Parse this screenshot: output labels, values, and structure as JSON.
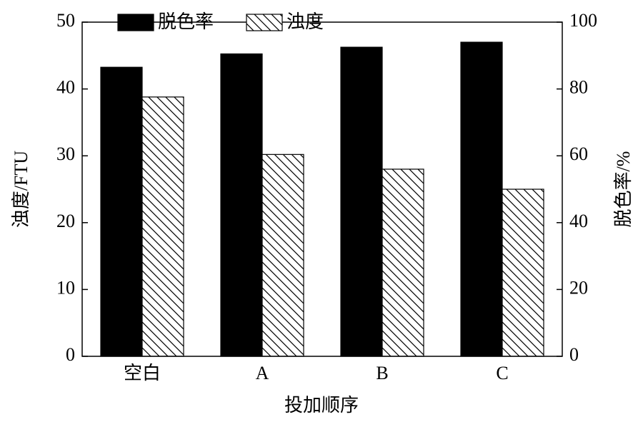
{
  "chart_data": {
    "type": "bar",
    "x_label": "投加顺序",
    "y_label": "浊度/FTU",
    "y2_label": "脱色率/%",
    "categories": [
      "空白",
      "A",
      "B",
      "C"
    ],
    "series": [
      {
        "name": "脱色率",
        "color": "#000000",
        "axis": "y2",
        "values": [
          86.5,
          90.5,
          92.5,
          94
        ]
      },
      {
        "name": "浊度",
        "color": "#000000",
        "pattern": "hatch",
        "values": [
          38.8,
          30.2,
          28,
          25
        ]
      }
    ],
    "ylim": [
      0,
      50
    ],
    "yticks": [
      0,
      10,
      20,
      30,
      40,
      50
    ],
    "y2lim": [
      0,
      100
    ],
    "y2ticks": [
      0,
      20,
      40,
      60,
      80,
      100
    ]
  }
}
